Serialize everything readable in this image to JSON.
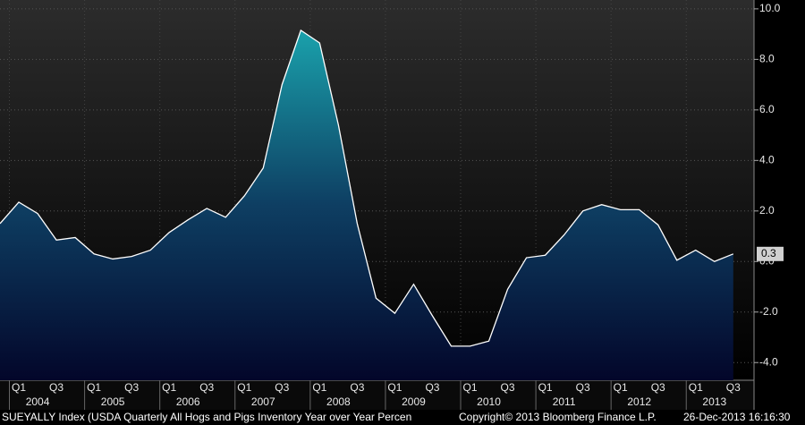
{
  "chart_data": {
    "type": "area",
    "categories": [
      null,
      "Q1",
      null,
      "Q3",
      null,
      "Q1",
      null,
      "Q3",
      null,
      "Q1",
      null,
      "Q3",
      null,
      "Q1",
      null,
      "Q3",
      null,
      "Q1",
      null,
      "Q3",
      null,
      "Q1",
      null,
      "Q3",
      null,
      "Q1",
      null,
      "Q3",
      null,
      "Q1",
      null,
      "Q3",
      null,
      "Q1",
      null,
      "Q3",
      null,
      "Q1",
      null,
      "Q3"
    ],
    "years": [
      "2004",
      "2005",
      "2006",
      "2007",
      "2008",
      "2009",
      "2010",
      "2011",
      "2012",
      "2013"
    ],
    "series": [
      {
        "name": "SUEYALLY Index",
        "color": "#ffffff",
        "values": [
          1.5,
          2.35,
          1.9,
          0.85,
          0.95,
          0.3,
          0.1,
          0.2,
          0.45,
          1.15,
          1.65,
          2.1,
          1.75,
          2.6,
          3.7,
          7.0,
          9.15,
          8.65,
          5.4,
          1.5,
          -1.45,
          -2.05,
          -0.9,
          -2.15,
          -3.35,
          -3.35,
          -3.15,
          -1.1,
          0.15,
          0.25,
          1.05,
          2.0,
          2.25,
          2.05,
          2.05,
          1.45,
          0.05,
          0.45,
          0.0,
          0.3
        ]
      }
    ],
    "ylim": [
      -4.7,
      10.35
    ],
    "yticks": [
      {
        "value": -4,
        "label": "-4.0"
      },
      {
        "value": -2,
        "label": "-2.0"
      },
      {
        "value": 0,
        "label": "0.0"
      },
      {
        "value": 2,
        "label": "2.0"
      },
      {
        "value": 4,
        "label": "4.0"
      },
      {
        "value": 6,
        "label": "6.0"
      },
      {
        "value": 8,
        "label": "8.0"
      },
      {
        "value": 10,
        "label": "10.0"
      }
    ],
    "grid": true,
    "footer": "SUEYALLY Index (USDA Quarterly All Hogs and Pigs Inventory Year over Year Percen",
    "copyright": "Copyright© 2013 Bloomberg Finance L.P.",
    "timestamp": "26-Dec-2013 16:16:30"
  }
}
